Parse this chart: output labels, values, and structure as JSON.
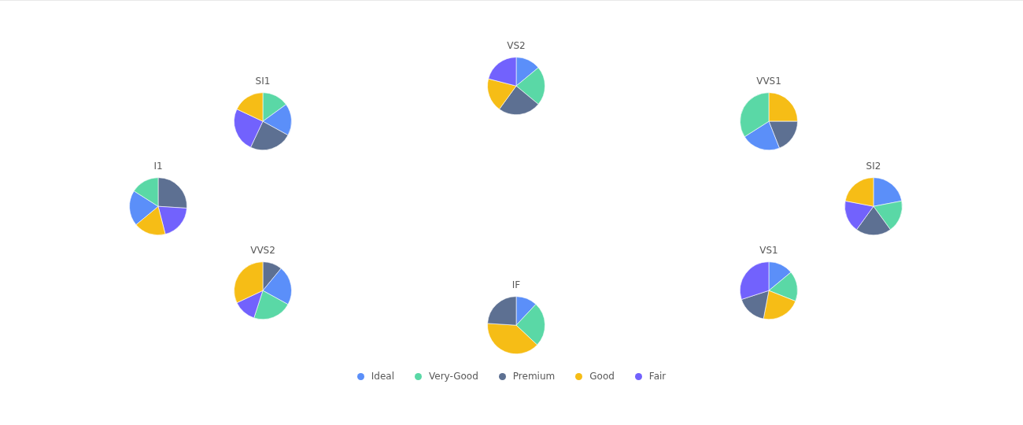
{
  "chart_data": [
    {
      "type": "pie",
      "title": "VS2",
      "legend": "bottom",
      "categories": [
        "Ideal",
        "Very-Good",
        "Premium",
        "Good",
        "Fair"
      ],
      "values": [
        14,
        22,
        24,
        19,
        21
      ],
      "colors": [
        "#5b8ff9",
        "#5ad8a6",
        "#5d7092",
        "#f6bd16",
        "#7262fd"
      ]
    },
    {
      "type": "pie",
      "title": "SI1",
      "categories": [
        null,
        null,
        null,
        null,
        null
      ],
      "values": [
        15,
        18,
        24,
        25,
        18
      ],
      "colors": [
        "#5ad8a6",
        "#5b8ff9",
        "#5d7092",
        "#7262fd",
        "#f6bd16"
      ]
    },
    {
      "type": "pie",
      "title": "VVS1",
      "categories": [
        null,
        null,
        null,
        null
      ],
      "values": [
        25,
        19,
        22,
        34
      ],
      "colors": [
        "#f6bd16",
        "#5d7092",
        "#5b8ff9",
        "#5ad8a6"
      ]
    },
    {
      "type": "pie",
      "title": "I1",
      "categories": [
        null,
        null,
        null,
        null,
        null
      ],
      "values": [
        26,
        20,
        18,
        20,
        16
      ],
      "colors": [
        "#5d7092",
        "#7262fd",
        "#f6bd16",
        "#5b8ff9",
        "#5ad8a6"
      ]
    },
    {
      "type": "pie",
      "title": "SI2",
      "categories": [
        null,
        null,
        null,
        null,
        null
      ],
      "values": [
        22,
        18,
        20,
        18,
        22
      ],
      "colors": [
        "#5b8ff9",
        "#5ad8a6",
        "#5d7092",
        "#7262fd",
        "#f6bd16"
      ]
    },
    {
      "type": "pie",
      "title": "VVS2",
      "categories": [
        null,
        null,
        null,
        null,
        null
      ],
      "values": [
        11,
        22,
        22,
        13,
        32
      ],
      "colors": [
        "#5d7092",
        "#5b8ff9",
        "#5ad8a6",
        "#7262fd",
        "#f6bd16"
      ]
    },
    {
      "type": "pie",
      "title": "VS1",
      "categories": [
        null,
        null,
        null,
        null,
        null
      ],
      "values": [
        14,
        17,
        22,
        17,
        30
      ],
      "colors": [
        "#5b8ff9",
        "#5ad8a6",
        "#f6bd16",
        "#5d7092",
        "#7262fd"
      ]
    },
    {
      "type": "pie",
      "title": "IF",
      "categories": [
        null,
        null,
        null,
        null
      ],
      "values": [
        12,
        25,
        39,
        24
      ],
      "colors": [
        "#5b8ff9",
        "#5ad8a6",
        "#f6bd16",
        "#5d7092"
      ]
    }
  ]
}
